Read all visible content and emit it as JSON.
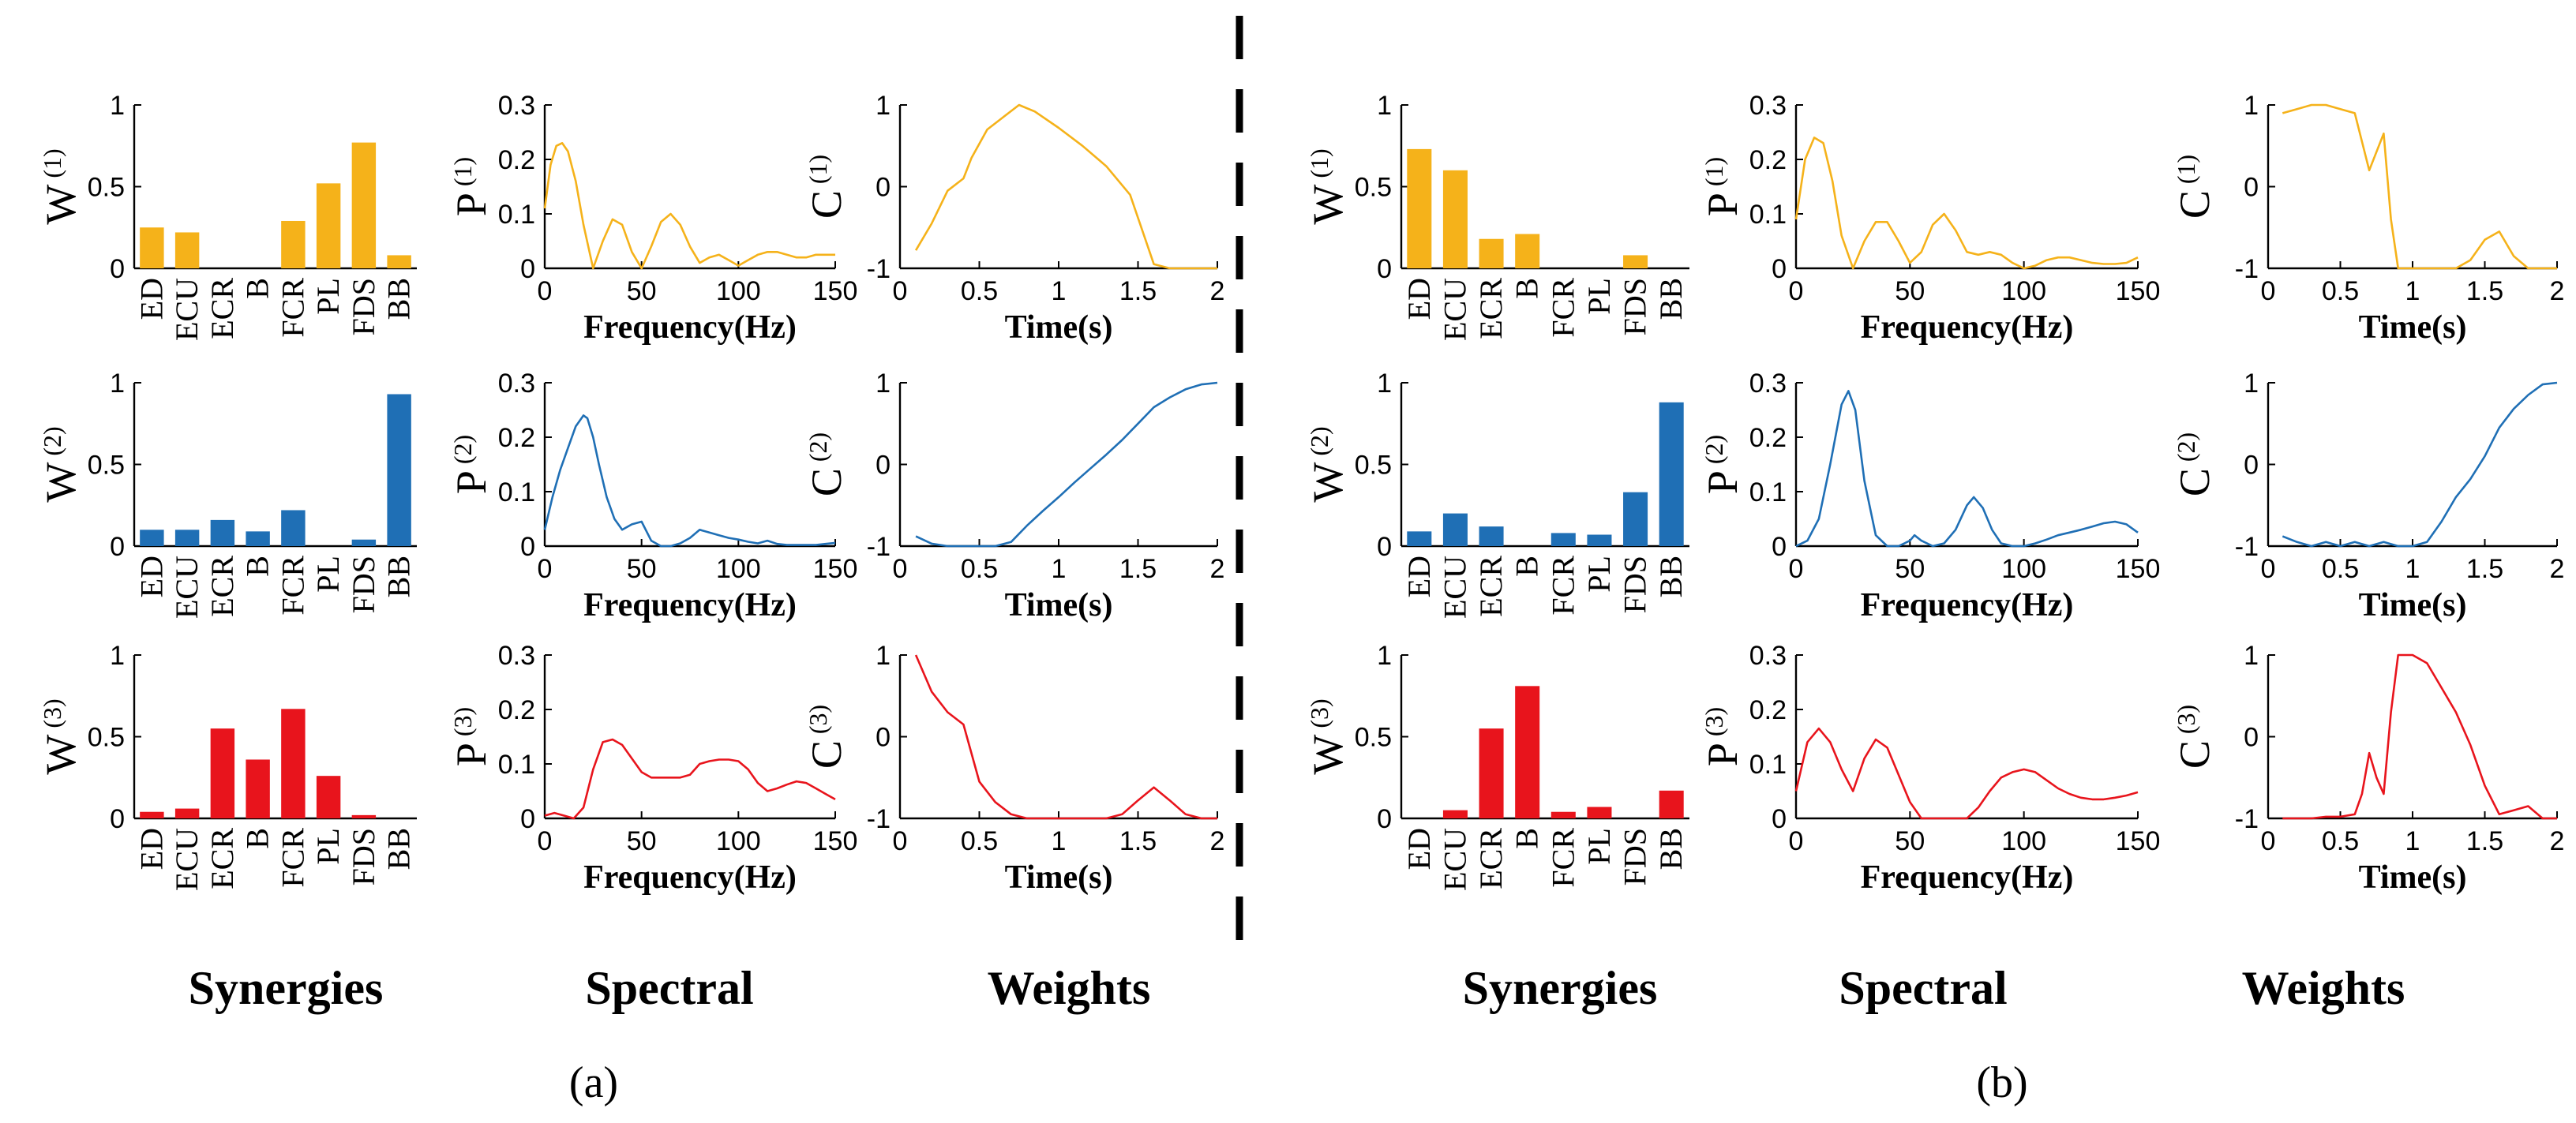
{
  "colors": {
    "synergy_1": "#F5B21A",
    "synergy_2": "#1F6FB5",
    "synergy_3": "#E8141C"
  },
  "column_labels": [
    "Synergies",
    "Spectral",
    "Weights"
  ],
  "panel_labels": [
    "(a)",
    "(b)"
  ],
  "muscles": [
    "ED",
    "ECU",
    "ECR",
    "B",
    "FCR",
    "PL",
    "FDS",
    "BB"
  ],
  "chart_data": [
    {
      "type": "bar",
      "panel": "a",
      "row": 1,
      "ylabel": "W",
      "ysup": "(1)",
      "color": "#F5B21A",
      "categories": [
        "ED",
        "ECU",
        "ECR",
        "B",
        "FCR",
        "PL",
        "FDS",
        "BB"
      ],
      "values": [
        0.25,
        0.22,
        0,
        0,
        0.29,
        0.52,
        0.77,
        0.08
      ],
      "ylim": [
        0,
        1
      ],
      "yticks": [
        0,
        0.5,
        1
      ]
    },
    {
      "type": "line",
      "panel": "a",
      "row": 1,
      "ylabel": "P",
      "ysup": "(1)",
      "xlabel": "Frequency(Hz)",
      "color": "#F5B21A",
      "xlim": [
        0,
        150
      ],
      "ylim": [
        0,
        0.3
      ],
      "xticks": [
        0,
        50,
        100,
        150
      ],
      "yticks": [
        0,
        0.1,
        0.2,
        0.3
      ],
      "x": [
        0,
        3,
        6,
        9,
        12,
        16,
        20,
        25,
        30,
        35,
        40,
        45,
        50,
        55,
        60,
        65,
        70,
        75,
        80,
        85,
        90,
        95,
        100,
        105,
        110,
        115,
        120,
        125,
        130,
        135,
        140,
        145,
        150
      ],
      "y": [
        0.11,
        0.19,
        0.225,
        0.23,
        0.215,
        0.16,
        0.08,
        0.0,
        0.05,
        0.09,
        0.08,
        0.03,
        0.0,
        0.04,
        0.085,
        0.1,
        0.08,
        0.04,
        0.01,
        0.02,
        0.025,
        0.015,
        0.005,
        0.015,
        0.025,
        0.03,
        0.03,
        0.025,
        0.02,
        0.02,
        0.025,
        0.025,
        0.025
      ]
    },
    {
      "type": "line",
      "panel": "a",
      "row": 1,
      "ylabel": "C",
      "ysup": "(1)",
      "xlabel": "Time(s)",
      "color": "#F5B21A",
      "xlim": [
        0,
        2
      ],
      "ylim": [
        -1,
        1
      ],
      "xticks": [
        0,
        0.5,
        1,
        1.5,
        2
      ],
      "yticks": [
        -1,
        0,
        1
      ],
      "x": [
        0.1,
        0.2,
        0.3,
        0.4,
        0.45,
        0.55,
        0.65,
        0.75,
        0.85,
        1.0,
        1.15,
        1.3,
        1.45,
        1.6,
        1.7,
        1.8,
        1.9,
        2.0
      ],
      "y": [
        -0.78,
        -0.45,
        -0.05,
        0.1,
        0.35,
        0.7,
        0.85,
        1.0,
        0.92,
        0.72,
        0.5,
        0.25,
        -0.1,
        -0.95,
        -1.0,
        -1.0,
        -1.0,
        -1.0
      ]
    },
    {
      "type": "bar",
      "panel": "a",
      "row": 2,
      "ylabel": "W",
      "ysup": "(2)",
      "color": "#1F6FB5",
      "categories": [
        "ED",
        "ECU",
        "ECR",
        "B",
        "FCR",
        "PL",
        "FDS",
        "BB"
      ],
      "values": [
        0.1,
        0.1,
        0.16,
        0.09,
        0.22,
        0,
        0.04,
        0.93
      ],
      "ylim": [
        0,
        1
      ],
      "yticks": [
        0,
        0.5,
        1
      ]
    },
    {
      "type": "line",
      "panel": "a",
      "row": 2,
      "ylabel": "P",
      "ysup": "(2)",
      "xlabel": "Frequency(Hz)",
      "color": "#1F6FB5",
      "xlim": [
        0,
        150
      ],
      "ylim": [
        0,
        0.3
      ],
      "xticks": [
        0,
        50,
        100,
        150
      ],
      "yticks": [
        0,
        0.1,
        0.2,
        0.3
      ],
      "x": [
        0,
        4,
        8,
        12,
        16,
        20,
        22,
        25,
        28,
        32,
        36,
        40,
        45,
        50,
        55,
        60,
        65,
        70,
        75,
        80,
        85,
        90,
        95,
        100,
        105,
        110,
        115,
        120,
        125,
        130,
        135,
        140,
        145,
        150
      ],
      "y": [
        0.03,
        0.09,
        0.14,
        0.18,
        0.22,
        0.24,
        0.235,
        0.2,
        0.15,
        0.09,
        0.05,
        0.03,
        0.04,
        0.045,
        0.01,
        0.0,
        0.0,
        0.005,
        0.015,
        0.03,
        0.025,
        0.02,
        0.015,
        0.012,
        0.008,
        0.005,
        0.01,
        0.004,
        0.002,
        0.002,
        0.002,
        0.002,
        0.004,
        0.006
      ]
    },
    {
      "type": "line",
      "panel": "a",
      "row": 2,
      "ylabel": "C",
      "ysup": "(2)",
      "xlabel": "Time(s)",
      "color": "#1F6FB5",
      "xlim": [
        0,
        2
      ],
      "ylim": [
        -1,
        1
      ],
      "xticks": [
        0,
        0.5,
        1,
        1.5,
        2
      ],
      "yticks": [
        -1,
        0,
        1
      ],
      "x": [
        0.1,
        0.2,
        0.3,
        0.4,
        0.5,
        0.6,
        0.7,
        0.8,
        0.9,
        1.0,
        1.1,
        1.2,
        1.3,
        1.4,
        1.5,
        1.6,
        1.7,
        1.8,
        1.9,
        2.0
      ],
      "y": [
        -0.88,
        -0.97,
        -1.0,
        -1.0,
        -1.0,
        -1.0,
        -0.95,
        -0.75,
        -0.57,
        -0.4,
        -0.22,
        -0.05,
        0.12,
        0.3,
        0.5,
        0.7,
        0.82,
        0.92,
        0.98,
        1.0
      ]
    },
    {
      "type": "bar",
      "panel": "a",
      "row": 3,
      "ylabel": "W",
      "ysup": "(3)",
      "color": "#E8141C",
      "categories": [
        "ED",
        "ECU",
        "ECR",
        "B",
        "FCR",
        "PL",
        "FDS",
        "BB"
      ],
      "values": [
        0.04,
        0.06,
        0.55,
        0.36,
        0.67,
        0.26,
        0.02,
        0
      ],
      "ylim": [
        0,
        1
      ],
      "yticks": [
        0,
        0.5,
        1
      ]
    },
    {
      "type": "line",
      "panel": "a",
      "row": 3,
      "ylabel": "P",
      "ysup": "(3)",
      "xlabel": "Frequency(Hz)",
      "color": "#E8141C",
      "xlim": [
        0,
        150
      ],
      "ylim": [
        0,
        0.3
      ],
      "xticks": [
        0,
        50,
        100,
        150
      ],
      "yticks": [
        0,
        0.1,
        0.2,
        0.3
      ],
      "x": [
        0,
        5,
        10,
        15,
        20,
        25,
        30,
        35,
        40,
        45,
        50,
        55,
        60,
        65,
        70,
        75,
        80,
        85,
        90,
        95,
        100,
        105,
        110,
        115,
        120,
        125,
        130,
        135,
        140,
        145,
        150
      ],
      "y": [
        0.005,
        0.01,
        0.005,
        0.0,
        0.02,
        0.09,
        0.14,
        0.145,
        0.135,
        0.11,
        0.085,
        0.075,
        0.075,
        0.075,
        0.075,
        0.08,
        0.1,
        0.105,
        0.108,
        0.108,
        0.105,
        0.09,
        0.065,
        0.05,
        0.055,
        0.062,
        0.068,
        0.065,
        0.055,
        0.045,
        0.035
      ]
    },
    {
      "type": "line",
      "panel": "a",
      "row": 3,
      "ylabel": "C",
      "ysup": "(3)",
      "xlabel": "Time(s)",
      "color": "#E8141C",
      "xlim": [
        0,
        2
      ],
      "ylim": [
        -1,
        1
      ],
      "xticks": [
        0,
        0.5,
        1,
        1.5,
        2
      ],
      "yticks": [
        -1,
        0,
        1
      ],
      "x": [
        0.1,
        0.2,
        0.3,
        0.4,
        0.5,
        0.6,
        0.7,
        0.8,
        0.9,
        1.0,
        1.1,
        1.2,
        1.3,
        1.4,
        1.5,
        1.6,
        1.7,
        1.8,
        1.9,
        2.0
      ],
      "y": [
        1.0,
        0.55,
        0.3,
        0.15,
        -0.55,
        -0.8,
        -0.95,
        -1.0,
        -1.0,
        -1.0,
        -1.0,
        -1.0,
        -1.0,
        -0.95,
        -0.78,
        -0.62,
        -0.78,
        -0.95,
        -1.0,
        -1.0
      ]
    },
    {
      "type": "bar",
      "panel": "b",
      "row": 1,
      "ylabel": "W",
      "ysup": "(1)",
      "color": "#F5B21A",
      "categories": [
        "ED",
        "ECU",
        "ECR",
        "B",
        "FCR",
        "PL",
        "FDS",
        "BB"
      ],
      "values": [
        0.73,
        0.6,
        0.18,
        0.21,
        0,
        0,
        0.08,
        0
      ],
      "ylim": [
        0,
        1
      ],
      "yticks": [
        0,
        0.5,
        1
      ]
    },
    {
      "type": "line",
      "panel": "b",
      "row": 1,
      "ylabel": "P",
      "ysup": "(1)",
      "xlabel": "Frequency(Hz)",
      "color": "#F5B21A",
      "xlim": [
        0,
        150
      ],
      "ylim": [
        0,
        0.3
      ],
      "xticks": [
        0,
        50,
        100,
        150
      ],
      "yticks": [
        0,
        0.1,
        0.2,
        0.3
      ],
      "x": [
        0,
        4,
        8,
        12,
        16,
        20,
        25,
        30,
        35,
        40,
        45,
        50,
        55,
        60,
        65,
        70,
        75,
        80,
        85,
        90,
        95,
        100,
        105,
        110,
        115,
        120,
        125,
        130,
        135,
        140,
        145,
        150
      ],
      "y": [
        0.09,
        0.2,
        0.24,
        0.23,
        0.16,
        0.06,
        0.0,
        0.05,
        0.085,
        0.085,
        0.05,
        0.01,
        0.03,
        0.08,
        0.1,
        0.07,
        0.03,
        0.025,
        0.03,
        0.025,
        0.01,
        0.0,
        0.005,
        0.015,
        0.02,
        0.02,
        0.015,
        0.01,
        0.008,
        0.008,
        0.01,
        0.02
      ]
    },
    {
      "type": "line",
      "panel": "b",
      "row": 1,
      "ylabel": "C",
      "ysup": "(1)",
      "xlabel": "Time(s)",
      "color": "#F5B21A",
      "xlim": [
        0,
        2
      ],
      "ylim": [
        -1,
        1
      ],
      "xticks": [
        0,
        0.5,
        1,
        1.5,
        2
      ],
      "yticks": [
        -1,
        0,
        1
      ],
      "x": [
        0.1,
        0.2,
        0.3,
        0.4,
        0.5,
        0.6,
        0.7,
        0.8,
        0.85,
        0.9,
        1.0,
        1.1,
        1.2,
        1.3,
        1.4,
        1.5,
        1.6,
        1.7,
        1.8,
        1.9,
        2.0
      ],
      "y": [
        0.9,
        0.95,
        1.0,
        1.0,
        0.95,
        0.9,
        0.2,
        0.65,
        -0.4,
        -1.0,
        -1.0,
        -1.0,
        -1.0,
        -1.0,
        -0.9,
        -0.65,
        -0.55,
        -0.85,
        -1.0,
        -1.0,
        -1.0
      ]
    },
    {
      "type": "bar",
      "panel": "b",
      "row": 2,
      "ylabel": "W",
      "ysup": "(2)",
      "color": "#1F6FB5",
      "categories": [
        "ED",
        "ECU",
        "ECR",
        "B",
        "FCR",
        "PL",
        "FDS",
        "BB"
      ],
      "values": [
        0.09,
        0.2,
        0.12,
        0,
        0.08,
        0.07,
        0.33,
        0.88
      ],
      "ylim": [
        0,
        1
      ],
      "yticks": [
        0,
        0.5,
        1
      ]
    },
    {
      "type": "line",
      "panel": "b",
      "row": 2,
      "ylabel": "P",
      "ysup": "(2)",
      "xlabel": "Frequency(Hz)",
      "color": "#1F6FB5",
      "xlim": [
        0,
        150
      ],
      "ylim": [
        0,
        0.3
      ],
      "xticks": [
        0,
        50,
        100,
        150
      ],
      "yticks": [
        0,
        0.1,
        0.2,
        0.3
      ],
      "x": [
        0,
        5,
        10,
        15,
        20,
        23,
        26,
        30,
        35,
        40,
        45,
        50,
        52,
        55,
        60,
        65,
        70,
        75,
        78,
        82,
        86,
        90,
        95,
        100,
        105,
        110,
        115,
        120,
        125,
        130,
        135,
        140,
        145,
        150
      ],
      "y": [
        0.0,
        0.01,
        0.05,
        0.15,
        0.26,
        0.285,
        0.25,
        0.12,
        0.02,
        0.0,
        0.0,
        0.01,
        0.02,
        0.01,
        0.0,
        0.005,
        0.03,
        0.075,
        0.09,
        0.07,
        0.03,
        0.005,
        0.0,
        0.0,
        0.005,
        0.012,
        0.02,
        0.025,
        0.03,
        0.036,
        0.042,
        0.045,
        0.04,
        0.025
      ]
    },
    {
      "type": "line",
      "panel": "b",
      "row": 2,
      "ylabel": "C",
      "ysup": "(2)",
      "xlabel": "Time(s)",
      "color": "#1F6FB5",
      "xlim": [
        0,
        2
      ],
      "ylim": [
        -1,
        1
      ],
      "xticks": [
        0,
        0.5,
        1,
        1.5,
        2
      ],
      "yticks": [
        -1,
        0,
        1
      ],
      "x": [
        0.1,
        0.2,
        0.3,
        0.4,
        0.5,
        0.6,
        0.7,
        0.8,
        0.9,
        1.0,
        1.1,
        1.2,
        1.3,
        1.4,
        1.5,
        1.6,
        1.7,
        1.8,
        1.9,
        2.0
      ],
      "y": [
        -0.88,
        -0.95,
        -1.0,
        -0.95,
        -1.0,
        -0.95,
        -1.0,
        -0.95,
        -1.0,
        -1.0,
        -0.95,
        -0.7,
        -0.4,
        -0.18,
        0.1,
        0.45,
        0.68,
        0.85,
        0.98,
        1.0
      ]
    },
    {
      "type": "bar",
      "panel": "b",
      "row": 3,
      "ylabel": "W",
      "ysup": "(3)",
      "color": "#E8141C",
      "categories": [
        "ED",
        "ECU",
        "ECR",
        "B",
        "FCR",
        "PL",
        "FDS",
        "BB"
      ],
      "values": [
        0,
        0.05,
        0.55,
        0.81,
        0.04,
        0.07,
        0,
        0.17
      ],
      "ylim": [
        0,
        1
      ],
      "yticks": [
        0,
        0.5,
        1
      ]
    },
    {
      "type": "line",
      "panel": "b",
      "row": 3,
      "ylabel": "P",
      "ysup": "(3)",
      "xlabel": "Frequency(Hz)",
      "color": "#E8141C",
      "xlim": [
        0,
        150
      ],
      "ylim": [
        0,
        0.3
      ],
      "xticks": [
        0,
        50,
        100,
        150
      ],
      "yticks": [
        0,
        0.1,
        0.2,
        0.3
      ],
      "x": [
        0,
        5,
        10,
        15,
        20,
        25,
        30,
        35,
        40,
        45,
        50,
        55,
        60,
        65,
        70,
        75,
        80,
        85,
        90,
        95,
        100,
        105,
        110,
        115,
        120,
        125,
        130,
        135,
        140,
        145,
        150
      ],
      "y": [
        0.05,
        0.14,
        0.165,
        0.14,
        0.09,
        0.05,
        0.11,
        0.145,
        0.13,
        0.08,
        0.03,
        0.0,
        0.0,
        0.0,
        0.0,
        0.0,
        0.02,
        0.05,
        0.075,
        0.085,
        0.09,
        0.085,
        0.07,
        0.055,
        0.045,
        0.038,
        0.035,
        0.035,
        0.038,
        0.042,
        0.048
      ]
    },
    {
      "type": "line",
      "panel": "b",
      "row": 3,
      "ylabel": "C",
      "ysup": "(3)",
      "xlabel": "Time(s)",
      "color": "#E8141C",
      "xlim": [
        0,
        2
      ],
      "ylim": [
        -1,
        1
      ],
      "xticks": [
        0,
        0.5,
        1,
        1.5,
        2
      ],
      "yticks": [
        -1,
        0,
        1
      ],
      "x": [
        0.1,
        0.2,
        0.3,
        0.4,
        0.5,
        0.6,
        0.65,
        0.7,
        0.75,
        0.8,
        0.85,
        0.9,
        1.0,
        1.1,
        1.2,
        1.3,
        1.4,
        1.5,
        1.6,
        1.7,
        1.8,
        1.9,
        2.0
      ],
      "y": [
        -1.0,
        -1.0,
        -1.0,
        -0.98,
        -0.98,
        -0.95,
        -0.7,
        -0.2,
        -0.5,
        -0.7,
        0.3,
        1.0,
        1.0,
        0.9,
        0.6,
        0.3,
        -0.1,
        -0.6,
        -0.95,
        -0.9,
        -0.85,
        -1.0,
        -1.0
      ]
    }
  ]
}
